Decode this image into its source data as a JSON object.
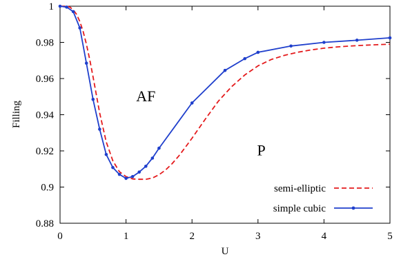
{
  "chart_data": {
    "type": "line",
    "xlabel": "U",
    "ylabel": "Filling",
    "xlim": [
      0,
      5
    ],
    "ylim": [
      0.88,
      1.0
    ],
    "x_ticks": [
      "0",
      "1",
      "2",
      "3",
      "4",
      "5"
    ],
    "y_ticks": [
      "0.88",
      "0.9",
      "0.92",
      "0.94",
      "0.96",
      "0.98",
      "1"
    ],
    "grid": false,
    "legend_position": "bottom-right",
    "annotations": [
      {
        "text": "AF",
        "x": 1.3,
        "y": 0.9475
      },
      {
        "text": "P",
        "x": 3.05,
        "y": 0.9175
      }
    ],
    "series": [
      {
        "name": "semi-elliptic",
        "color": "#e41a1c",
        "style": "dashed",
        "x": [
          0,
          0.1,
          0.15,
          0.2,
          0.25,
          0.3,
          0.35,
          0.4,
          0.45,
          0.5,
          0.6,
          0.7,
          0.8,
          0.9,
          1.0,
          1.1,
          1.2,
          1.3,
          1.4,
          1.5,
          1.6,
          1.7,
          1.8,
          1.9,
          2.0,
          2.2,
          2.4,
          2.6,
          2.8,
          3.0,
          3.2,
          3.4,
          3.6,
          3.8,
          4.0,
          4.2,
          4.4,
          4.6,
          4.8,
          5.0
        ],
        "y": [
          1.0,
          1.0,
          0.9995,
          0.998,
          0.9955,
          0.9915,
          0.986,
          0.979,
          0.9705,
          0.961,
          0.941,
          0.925,
          0.9145,
          0.9085,
          0.9058,
          0.9045,
          0.9043,
          0.9043,
          0.905,
          0.9068,
          0.9095,
          0.913,
          0.9172,
          0.922,
          0.927,
          0.9375,
          0.9475,
          0.9555,
          0.962,
          0.967,
          0.9705,
          0.9728,
          0.9745,
          0.9758,
          0.9768,
          0.9775,
          0.978,
          0.9784,
          0.9787,
          0.979
        ]
      },
      {
        "name": "simple cubic",
        "color": "#1f3fcc",
        "style": "solid-markers",
        "x": [
          0,
          0.1,
          0.2,
          0.3,
          0.4,
          0.5,
          0.6,
          0.7,
          0.8,
          0.9,
          1.0,
          1.1,
          1.2,
          1.3,
          1.4,
          1.5,
          2.0,
          2.5,
          2.8,
          3.0,
          3.5,
          4.0,
          4.5,
          5.0
        ],
        "y": [
          1.0,
          0.9995,
          0.997,
          0.988,
          0.9685,
          0.9485,
          0.932,
          0.918,
          0.9108,
          0.907,
          0.9048,
          0.9058,
          0.9083,
          0.9115,
          0.916,
          0.9215,
          0.9465,
          0.9645,
          0.971,
          0.9745,
          0.978,
          0.98,
          0.9812,
          0.9825
        ]
      }
    ]
  }
}
